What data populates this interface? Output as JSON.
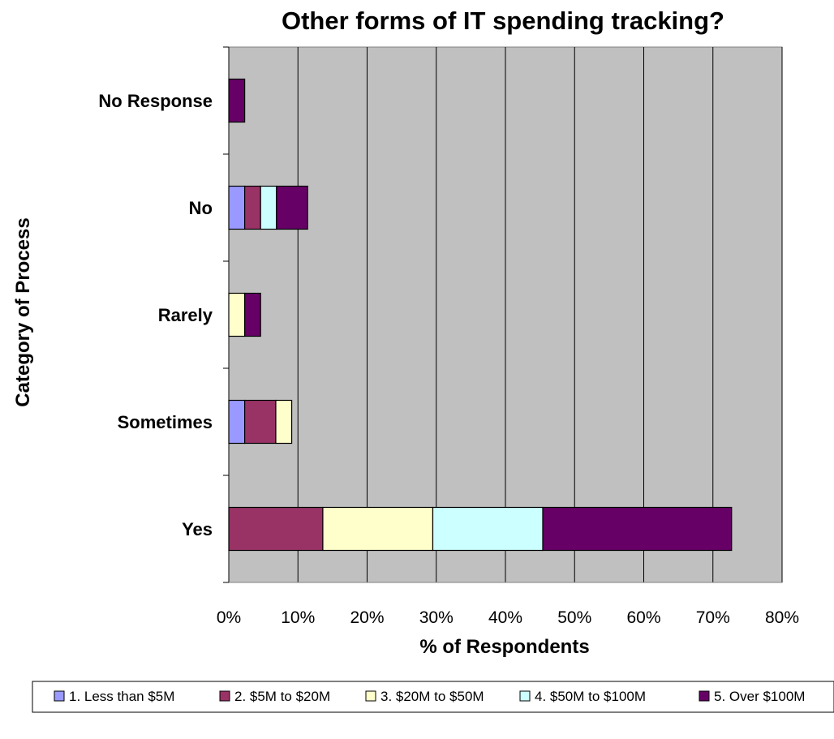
{
  "chart_data": {
    "type": "bar",
    "orientation": "horizontal",
    "stacked": true,
    "title": "Other forms of IT spending tracking?",
    "xlabel": "% of Respondents",
    "ylabel": "Category of Process",
    "categories": [
      "Yes",
      "Sometimes",
      "Rarely",
      "No",
      "No Response"
    ],
    "xlim": [
      0,
      80
    ],
    "xticks": [
      "0%",
      "10%",
      "20%",
      "30%",
      "40%",
      "50%",
      "60%",
      "70%",
      "80%"
    ],
    "grid": true,
    "legend_position": "bottom",
    "series": [
      {
        "name": "1. Less than $5M",
        "color": "#9999ff",
        "values": [
          0,
          2.3,
          0,
          2.3,
          0
        ]
      },
      {
        "name": "2. $5M to $20M",
        "color": "#993366",
        "values": [
          13.6,
          4.5,
          0,
          2.3,
          0
        ]
      },
      {
        "name": "3. $20M to $50M",
        "color": "#ffffcc",
        "values": [
          15.9,
          2.3,
          2.3,
          0,
          0
        ]
      },
      {
        "name": "4. $50M to $100M",
        "color": "#ccffff",
        "values": [
          15.9,
          0,
          0,
          2.3,
          0
        ]
      },
      {
        "name": "5. Over $100M",
        "color": "#660066",
        "values": [
          27.3,
          0,
          2.3,
          4.5,
          2.3
        ]
      }
    ],
    "plot_background": "#c0c0c0"
  }
}
